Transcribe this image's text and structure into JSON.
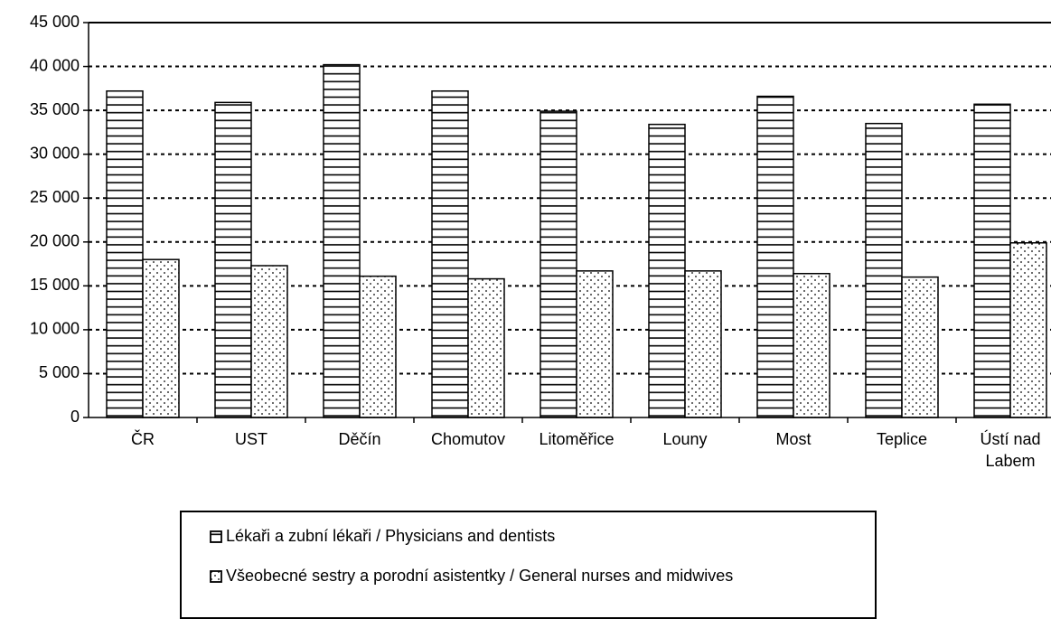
{
  "chart_data": {
    "type": "bar",
    "categories": [
      "ČR",
      "UST",
      "Děčín",
      "Chomutov",
      "Litoměřice",
      "Louny",
      "Most",
      "Teplice",
      "Ústí nad Labem"
    ],
    "series": [
      {
        "name": "Lékaři a zubní lékaři / Physicians and dentists",
        "color": "#000000",
        "pattern": "horizontal-lines",
        "values": [
          37200,
          35900,
          40200,
          37200,
          34900,
          33400,
          36600,
          33500,
          35700
        ]
      },
      {
        "name": "Všeobecné sestry a porodní asistentky / General nurses and midwives",
        "color": "#000000",
        "pattern": "dots",
        "values": [
          18000,
          17300,
          16100,
          15800,
          16700,
          16700,
          16400,
          16000,
          19900
        ]
      }
    ],
    "ylim": [
      0,
      45000
    ],
    "yticks": [
      {
        "value": 0,
        "label": "0"
      },
      {
        "value": 5000,
        "label": "5 000"
      },
      {
        "value": 10000,
        "label": "10 000"
      },
      {
        "value": 15000,
        "label": "15 000"
      },
      {
        "value": 20000,
        "label": "20 000"
      },
      {
        "value": 25000,
        "label": "25 000"
      },
      {
        "value": 30000,
        "label": "30 000"
      },
      {
        "value": 35000,
        "label": "35 000"
      },
      {
        "value": 40000,
        "label": "40 000"
      },
      {
        "value": 45000,
        "label": "45 000"
      }
    ],
    "grid": true,
    "legend": "bottom"
  }
}
